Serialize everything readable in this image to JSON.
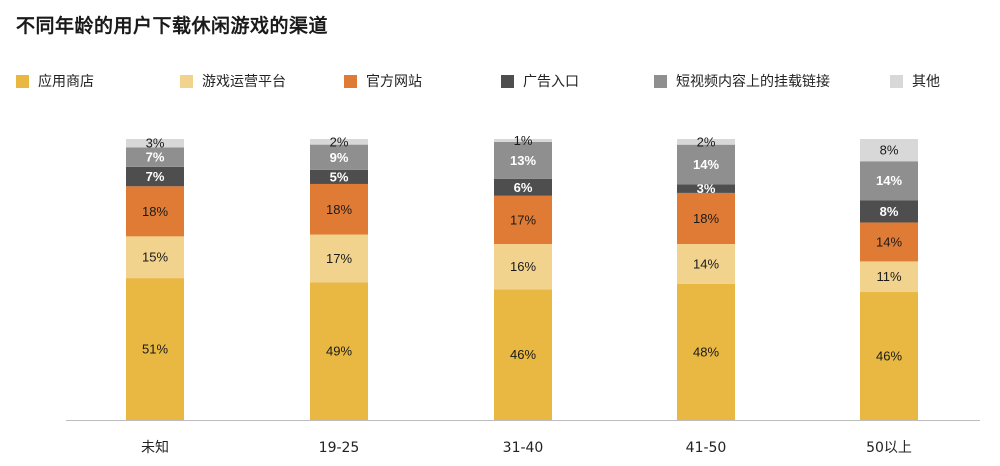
{
  "page": {
    "title": "不同年龄的用户下载休闲游戏的渠道"
  },
  "chart_data": {
    "type": "bar",
    "stacked": true,
    "title": "不同年龄的用户下载休闲游戏的渠道",
    "xlabel": "",
    "ylabel": "",
    "ylim": [
      0,
      100
    ],
    "unit": "%",
    "grid": false,
    "legend_position": "top",
    "categories": [
      "未知",
      "19-25",
      "31-40",
      "41-50",
      "50以上"
    ],
    "series": [
      {
        "name": "应用商店",
        "color": "#E8B843",
        "label_color": "#1a1a1a",
        "values": [
          51,
          49,
          46,
          48,
          46
        ]
      },
      {
        "name": "游戏运营平台",
        "color": "#F2D38E",
        "label_color": "#1a1a1a",
        "values": [
          15,
          17,
          16,
          14,
          11
        ]
      },
      {
        "name": "官方网站",
        "color": "#E07B36",
        "label_color": "#1a1a1a",
        "values": [
          18,
          18,
          17,
          18,
          14
        ]
      },
      {
        "name": "广告入口",
        "color": "#4E4E4E",
        "label_color": "#ffffff",
        "values": [
          7,
          5,
          6,
          3,
          8
        ]
      },
      {
        "name": "短视频内容上的挂载链接",
        "color": "#8F8F8F",
        "label_color": "#ffffff",
        "values": [
          7,
          9,
          13,
          14,
          14
        ]
      },
      {
        "name": "其他",
        "color": "#D8D8D8",
        "label_color": "#1a1a1a",
        "values": [
          3,
          2,
          1,
          2,
          8
        ]
      }
    ]
  }
}
